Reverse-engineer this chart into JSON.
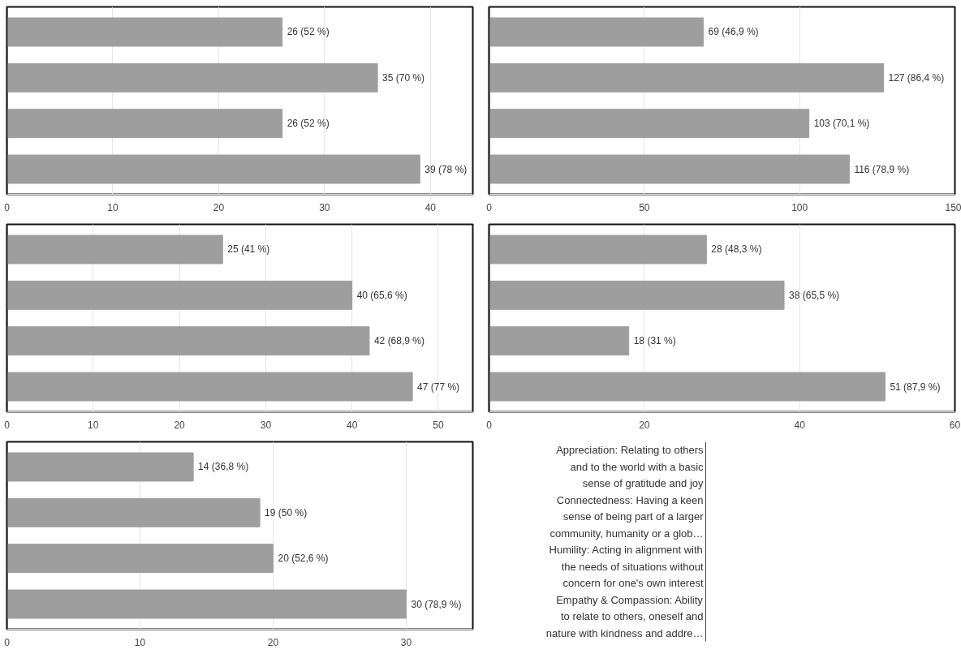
{
  "chart_data": [
    {
      "type": "bar",
      "orientation": "horizontal",
      "categories": [
        null,
        null,
        null,
        null
      ],
      "values": [
        26,
        35,
        26,
        39
      ],
      "value_labels": [
        "26 (52 %)",
        "35 (70 %)",
        "26 (52 %)",
        "39 (78 %)"
      ],
      "color": "#9e9e9e",
      "xlim": [
        0,
        44
      ],
      "xticks": [
        0,
        10,
        20,
        30,
        40
      ],
      "grid": "x"
    },
    {
      "type": "bar",
      "orientation": "horizontal",
      "categories": [
        null,
        null,
        null,
        null
      ],
      "values": [
        69,
        127,
        103,
        116
      ],
      "value_labels": [
        "69 (46,9 %)",
        "127 (86,4 %)",
        "103 (70,1 %)",
        "116 (78,9 %)"
      ],
      "color": "#9e9e9e",
      "xlim": [
        0,
        150
      ],
      "xticks": [
        0,
        50,
        100,
        150
      ],
      "grid": "x"
    },
    {
      "type": "bar",
      "orientation": "horizontal",
      "categories": [
        null,
        null,
        null,
        null
      ],
      "values": [
        25,
        40,
        42,
        47
      ],
      "value_labels": [
        "25 (41 %)",
        "40 (65,6 %)",
        "42 (68,9 %)",
        "47 (77 %)"
      ],
      "color": "#9e9e9e",
      "xlim": [
        0,
        54
      ],
      "xticks": [
        0,
        10,
        20,
        30,
        40,
        50
      ],
      "grid": "x"
    },
    {
      "type": "bar",
      "orientation": "horizontal",
      "categories": [
        null,
        null,
        null,
        null
      ],
      "values": [
        28,
        38,
        18,
        51
      ],
      "value_labels": [
        "28 (48,3 %)",
        "38 (65,5 %)",
        "18 (31 %)",
        "51 (87,9 %)"
      ],
      "color": "#9e9e9e",
      "xlim": [
        0,
        60
      ],
      "xticks": [
        0,
        20,
        40,
        60
      ],
      "grid": "x"
    },
    {
      "type": "bar",
      "orientation": "horizontal",
      "categories": [
        null,
        null,
        null,
        null
      ],
      "values": [
        14,
        19,
        20,
        30
      ],
      "value_labels": [
        "14 (36,8 %)",
        "19 (50 %)",
        "20 (52,6 %)",
        "30 (78,9 %)"
      ],
      "color": "#9e9e9e",
      "xlim": [
        0,
        35
      ],
      "xticks": [
        0,
        10,
        20,
        30
      ],
      "grid": "x"
    },
    {
      "type": "other",
      "annotations": [
        "Appreciation: Relating to others\nand to the world with a basic\nsense of gratitude and joy",
        "Connectedness: Having a keen\nsense of being part of a larger\ncommunity, humanity or a glob…",
        "Humility: Acting in alignment with\nthe needs of situations without\nconcern for one's own interest",
        "Empathy & Compassion: Ability\nto relate to others, oneself and\nnature with kindness and addre…"
      ]
    }
  ]
}
